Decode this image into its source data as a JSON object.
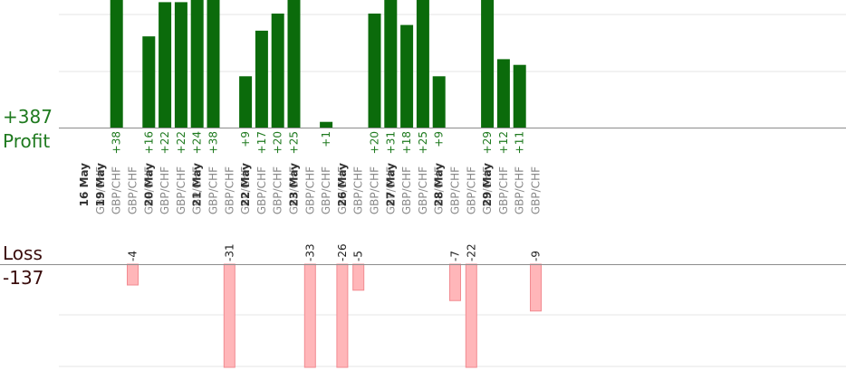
{
  "summary": {
    "profit_total": "+387",
    "profit_label": "Profit",
    "loss_label": "Loss",
    "loss_total": "-137"
  },
  "colors": {
    "profit_bar": "#0b6b0b",
    "profit_text": "#1f7a1f",
    "loss_bar": "#ffb6b9",
    "loss_stroke": "#f28b91",
    "date_text": "#333333",
    "pair_text": "#8a8a8a"
  },
  "chart_data": {
    "type": "bar",
    "pair": "GBP/CHF",
    "days": [
      {
        "date": "16 May",
        "trades": 1
      },
      {
        "date": "19 May",
        "trades": 3
      },
      {
        "date": "20 May",
        "trades": 3
      },
      {
        "date": "21 May",
        "trades": 3
      },
      {
        "date": "22 May",
        "trades": 3
      },
      {
        "date": "23 May",
        "trades": 3
      },
      {
        "date": "26 May",
        "trades": 3
      },
      {
        "date": "27 May",
        "trades": 3
      },
      {
        "date": "28 May",
        "trades": 3
      },
      {
        "date": "29 May",
        "trades": 2
      }
    ],
    "trades": [
      {
        "pair": "GBP/CHF",
        "value": null
      },
      {
        "pair": "GBP/CHF",
        "value": 38
      },
      {
        "pair": "GBP/CHF",
        "value": -4
      },
      {
        "pair": "GBP/CHF",
        "value": 16
      },
      {
        "pair": "GBP/CHF",
        "value": 22
      },
      {
        "pair": "GBP/CHF",
        "value": 22
      },
      {
        "pair": "GBP/CHF",
        "value": 24
      },
      {
        "pair": "GBP/CHF",
        "value": 38
      },
      {
        "pair": "GBP/CHF",
        "value": -31
      },
      {
        "pair": "GBP/CHF",
        "value": 9
      },
      {
        "pair": "GBP/CHF",
        "value": 17
      },
      {
        "pair": "GBP/CHF",
        "value": 20
      },
      {
        "pair": "GBP/CHF",
        "value": 25
      },
      {
        "pair": "GBP/CHF",
        "value": -33
      },
      {
        "pair": "GBP/CHF",
        "value": 1
      },
      {
        "pair": "GBP/CHF",
        "value": -26
      },
      {
        "pair": "GBP/CHF",
        "value": -5
      },
      {
        "pair": "GBP/CHF",
        "value": 20
      },
      {
        "pair": "GBP/CHF",
        "value": 31
      },
      {
        "pair": "GBP/CHF",
        "value": 18
      },
      {
        "pair": "GBP/CHF",
        "value": 25
      },
      {
        "pair": "GBP/CHF",
        "value": 9
      },
      {
        "pair": "GBP/CHF",
        "value": -7
      },
      {
        "pair": "GBP/CHF",
        "value": -22
      },
      {
        "pair": "GBP/CHF",
        "value": 29
      },
      {
        "pair": "GBP/CHF",
        "value": 12
      },
      {
        "pair": "GBP/CHF",
        "value": 11
      },
      {
        "pair": "GBP/CHF",
        "value": -9
      }
    ],
    "profit_axis_max": 25,
    "loss_axis_max": 20,
    "grid": true
  }
}
